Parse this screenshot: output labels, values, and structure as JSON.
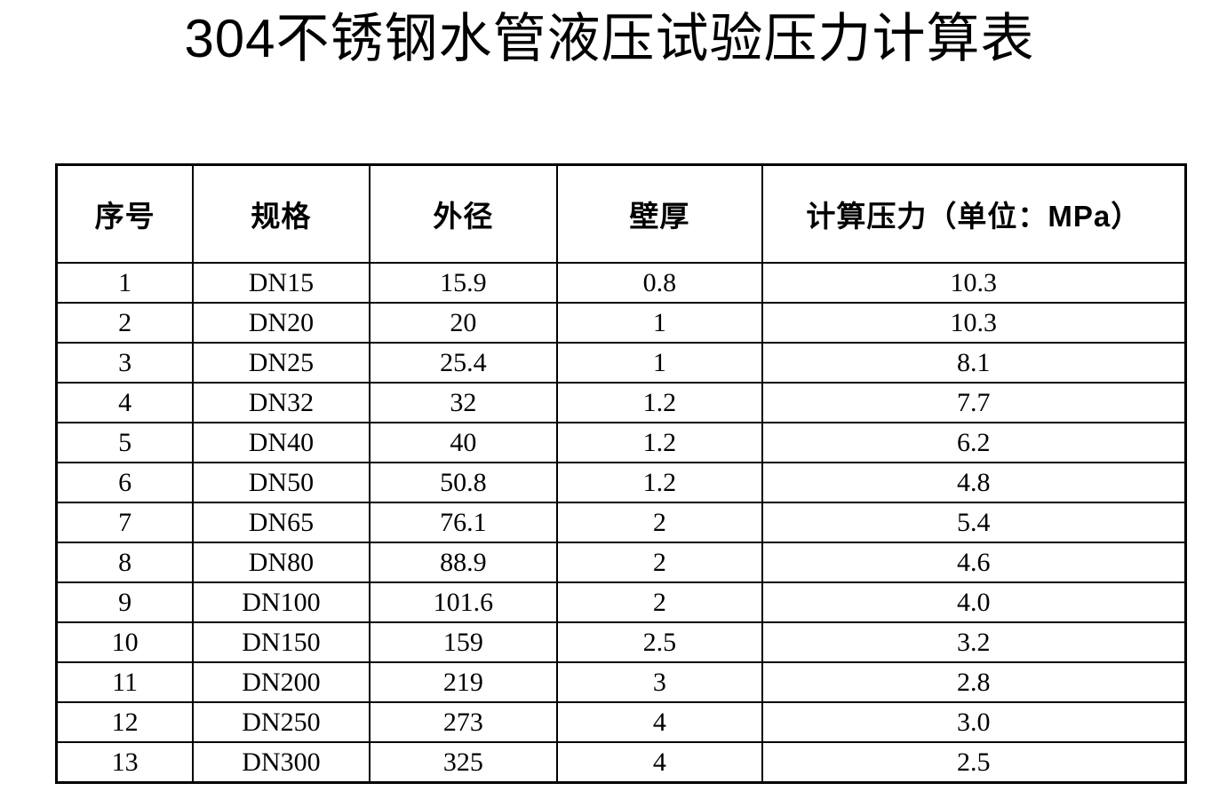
{
  "document": {
    "title": "304不锈钢水管液压试验压力计算表"
  },
  "table": {
    "headers": [
      "序号",
      "规格",
      "外径",
      "壁厚",
      "计算压力（单位：MPa）"
    ],
    "rows": [
      [
        "1",
        "DN15",
        "15.9",
        "0.8",
        "10.3"
      ],
      [
        "2",
        "DN20",
        "20",
        "1",
        "10.3"
      ],
      [
        "3",
        "DN25",
        "25.4",
        "1",
        "8.1"
      ],
      [
        "4",
        "DN32",
        "32",
        "1.2",
        "7.7"
      ],
      [
        "5",
        "DN40",
        "40",
        "1.2",
        "6.2"
      ],
      [
        "6",
        "DN50",
        "50.8",
        "1.2",
        "4.8"
      ],
      [
        "7",
        "DN65",
        "76.1",
        "2",
        "5.4"
      ],
      [
        "8",
        "DN80",
        "88.9",
        "2",
        "4.6"
      ],
      [
        "9",
        "DN100",
        "101.6",
        "2",
        "4.0"
      ],
      [
        "10",
        "DN150",
        "159",
        "2.5",
        "3.2"
      ],
      [
        "11",
        "DN200",
        "219",
        "3",
        "2.8"
      ],
      [
        "12",
        "DN250",
        "273",
        "4",
        "3.0"
      ],
      [
        "13",
        "DN300",
        "325",
        "4",
        "2.5"
      ]
    ]
  },
  "colors": {
    "text": "#000000",
    "background": "#ffffff",
    "table_border": "#000000"
  }
}
